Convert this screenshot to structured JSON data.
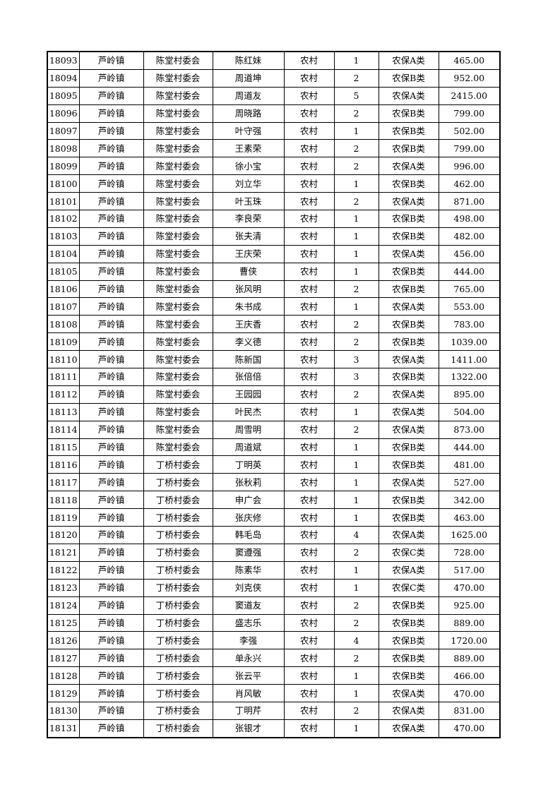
{
  "table": {
    "rows": [
      [
        "18093",
        "芦岭镇",
        "陈堂村委会",
        "陈红妹",
        "农村",
        "1",
        "农保A类",
        "465.00"
      ],
      [
        "18094",
        "芦岭镇",
        "陈堂村委会",
        "周道坤",
        "农村",
        "2",
        "农保B类",
        "952.00"
      ],
      [
        "18095",
        "芦岭镇",
        "陈堂村委会",
        "周道友",
        "农村",
        "5",
        "农保A类",
        "2415.00"
      ],
      [
        "18096",
        "芦岭镇",
        "陈堂村委会",
        "周晓路",
        "农村",
        "2",
        "农保B类",
        "799.00"
      ],
      [
        "18097",
        "芦岭镇",
        "陈堂村委会",
        "叶守强",
        "农村",
        "1",
        "农保B类",
        "502.00"
      ],
      [
        "18098",
        "芦岭镇",
        "陈堂村委会",
        "王素荣",
        "农村",
        "2",
        "农保B类",
        "799.00"
      ],
      [
        "18099",
        "芦岭镇",
        "陈堂村委会",
        "徐小宝",
        "农村",
        "2",
        "农保A类",
        "996.00"
      ],
      [
        "18100",
        "芦岭镇",
        "陈堂村委会",
        "刘立华",
        "农村",
        "1",
        "农保B类",
        "462.00"
      ],
      [
        "18101",
        "芦岭镇",
        "陈堂村委会",
        "叶玉珠",
        "农村",
        "2",
        "农保A类",
        "871.00"
      ],
      [
        "18102",
        "芦岭镇",
        "陈堂村委会",
        "李良荣",
        "农村",
        "1",
        "农保B类",
        "498.00"
      ],
      [
        "18103",
        "芦岭镇",
        "陈堂村委会",
        "张夫清",
        "农村",
        "1",
        "农保B类",
        "482.00"
      ],
      [
        "18104",
        "芦岭镇",
        "陈堂村委会",
        "王庆荣",
        "农村",
        "1",
        "农保A类",
        "456.00"
      ],
      [
        "18105",
        "芦岭镇",
        "陈堂村委会",
        "曹侠",
        "农村",
        "1",
        "农保B类",
        "444.00"
      ],
      [
        "18106",
        "芦岭镇",
        "陈堂村委会",
        "张风明",
        "农村",
        "2",
        "农保B类",
        "765.00"
      ],
      [
        "18107",
        "芦岭镇",
        "陈堂村委会",
        "朱书成",
        "农村",
        "1",
        "农保A类",
        "553.00"
      ],
      [
        "18108",
        "芦岭镇",
        "陈堂村委会",
        "王庆香",
        "农村",
        "2",
        "农保B类",
        "783.00"
      ],
      [
        "18109",
        "芦岭镇",
        "陈堂村委会",
        "李义德",
        "农村",
        "2",
        "农保B类",
        "1039.00"
      ],
      [
        "18110",
        "芦岭镇",
        "陈堂村委会",
        "陈新国",
        "农村",
        "3",
        "农保A类",
        "1411.00"
      ],
      [
        "18111",
        "芦岭镇",
        "陈堂村委会",
        "张倍倍",
        "农村",
        "3",
        "农保B类",
        "1322.00"
      ],
      [
        "18112",
        "芦岭镇",
        "陈堂村委会",
        "王园园",
        "农村",
        "2",
        "农保A类",
        "895.00"
      ],
      [
        "18113",
        "芦岭镇",
        "陈堂村委会",
        "叶民杰",
        "农村",
        "1",
        "农保A类",
        "504.00"
      ],
      [
        "18114",
        "芦岭镇",
        "陈堂村委会",
        "周雪明",
        "农村",
        "2",
        "农保A类",
        "873.00"
      ],
      [
        "18115",
        "芦岭镇",
        "陈堂村委会",
        "周道斌",
        "农村",
        "1",
        "农保B类",
        "444.00"
      ],
      [
        "18116",
        "芦岭镇",
        "丁桥村委会",
        "丁明英",
        "农村",
        "1",
        "农保B类",
        "481.00"
      ],
      [
        "18117",
        "芦岭镇",
        "丁桥村委会",
        "张秋莉",
        "农村",
        "1",
        "农保A类",
        "527.00"
      ],
      [
        "18118",
        "芦岭镇",
        "丁桥村委会",
        "申广会",
        "农村",
        "1",
        "农保B类",
        "342.00"
      ],
      [
        "18119",
        "芦岭镇",
        "丁桥村委会",
        "张庆修",
        "农村",
        "1",
        "农保B类",
        "463.00"
      ],
      [
        "18120",
        "芦岭镇",
        "丁桥村委会",
        "韩毛岛",
        "农村",
        "4",
        "农保A类",
        "1625.00"
      ],
      [
        "18121",
        "芦岭镇",
        "丁桥村委会",
        "窦遵强",
        "农村",
        "2",
        "农保C类",
        "728.00"
      ],
      [
        "18122",
        "芦岭镇",
        "丁桥村委会",
        "陈素华",
        "农村",
        "1",
        "农保A类",
        "517.00"
      ],
      [
        "18123",
        "芦岭镇",
        "丁桥村委会",
        "刘克侠",
        "农村",
        "1",
        "农保C类",
        "470.00"
      ],
      [
        "18124",
        "芦岭镇",
        "丁桥村委会",
        "窦道友",
        "农村",
        "2",
        "农保B类",
        "925.00"
      ],
      [
        "18125",
        "芦岭镇",
        "丁桥村委会",
        "盛志乐",
        "农村",
        "2",
        "农保B类",
        "889.00"
      ],
      [
        "18126",
        "芦岭镇",
        "丁桥村委会",
        "李强",
        "农村",
        "4",
        "农保B类",
        "1720.00"
      ],
      [
        "18127",
        "芦岭镇",
        "丁桥村委会",
        "单永兴",
        "农村",
        "2",
        "农保B类",
        "889.00"
      ],
      [
        "18128",
        "芦岭镇",
        "丁桥村委会",
        "张云平",
        "农村",
        "1",
        "农保B类",
        "466.00"
      ],
      [
        "18129",
        "芦岭镇",
        "丁桥村委会",
        "肖风敏",
        "农村",
        "1",
        "农保A类",
        "470.00"
      ],
      [
        "18130",
        "芦岭镇",
        "丁桥村委会",
        "丁明芹",
        "农村",
        "2",
        "农保A类",
        "831.00"
      ],
      [
        "18131",
        "芦岭镇",
        "丁桥村委会",
        "张银才",
        "农村",
        "1",
        "农保A类",
        "470.00"
      ]
    ]
  }
}
